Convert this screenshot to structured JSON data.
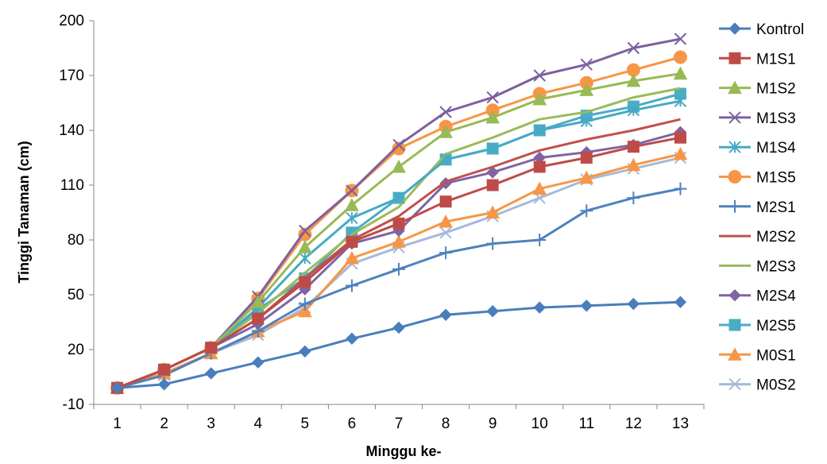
{
  "chart_data": {
    "type": "line",
    "xlabel": "Minggu ke-",
    "ylabel": "Tinggi Tanaman (cm)",
    "x": [
      1,
      2,
      3,
      4,
      5,
      6,
      7,
      8,
      9,
      10,
      11,
      12,
      13
    ],
    "ylim": [
      -10,
      200
    ],
    "yticks": [
      -10,
      20,
      50,
      80,
      110,
      140,
      170,
      200
    ],
    "grid": false,
    "legend_position": "right",
    "series": [
      {
        "name": "Kontrol",
        "color": "#4A7EBB",
        "marker": "diamond",
        "values": [
          -1,
          1,
          7,
          13,
          19,
          26,
          32,
          39,
          41,
          43,
          44,
          45,
          46
        ]
      },
      {
        "name": "M1S1",
        "color": "#BE4B48",
        "marker": "square",
        "values": [
          -1,
          9,
          21,
          37,
          57,
          79,
          89,
          101,
          110,
          120,
          125,
          131,
          136
        ]
      },
      {
        "name": "M1S2",
        "color": "#98B954",
        "marker": "triangle",
        "values": [
          -1,
          9,
          21,
          46,
          76,
          99,
          120,
          139,
          147,
          157,
          162,
          167,
          171
        ]
      },
      {
        "name": "M1S3",
        "color": "#7D60A0",
        "marker": "x",
        "values": [
          -1,
          9,
          21,
          49,
          85,
          107,
          132,
          150,
          158,
          170,
          176,
          185,
          190
        ]
      },
      {
        "name": "M1S4",
        "color": "#46AAC5",
        "marker": "asterisk",
        "values": [
          -1,
          9,
          21,
          43,
          70,
          92,
          103,
          124,
          130,
          140,
          145,
          151,
          156
        ]
      },
      {
        "name": "M1S5",
        "color": "#F79646",
        "marker": "circle",
        "values": [
          -1,
          9,
          21,
          48,
          83,
          107,
          130,
          142,
          151,
          160,
          166,
          173,
          180
        ]
      },
      {
        "name": "M2S1",
        "color": "#4F81BD",
        "marker": "plus",
        "values": [
          -1,
          6,
          18,
          30,
          45,
          55,
          64,
          73,
          78,
          80,
          96,
          103,
          108
        ]
      },
      {
        "name": "M2S2",
        "color": "#C0504D",
        "marker": "none",
        "values": [
          -1,
          9,
          21,
          37,
          59,
          80,
          93,
          112,
          120,
          129,
          135,
          140,
          146
        ]
      },
      {
        "name": "M2S3",
        "color": "#9BBB59",
        "marker": "none",
        "values": [
          -1,
          9,
          21,
          40,
          62,
          83,
          98,
          127,
          136,
          146,
          150,
          158,
          163
        ]
      },
      {
        "name": "M2S4",
        "color": "#8064A2",
        "marker": "diamond",
        "values": [
          -1,
          9,
          21,
          34,
          53,
          78,
          85,
          111,
          117,
          125,
          128,
          132,
          139
        ]
      },
      {
        "name": "M2S5",
        "color": "#4BACC6",
        "marker": "square",
        "values": [
          -1,
          9,
          21,
          42,
          59,
          84,
          103,
          124,
          130,
          140,
          148,
          153,
          160
        ]
      },
      {
        "name": "M0S1",
        "color": "#F79646",
        "marker": "triangle",
        "values": [
          -1,
          7,
          18,
          30,
          41,
          70,
          79,
          90,
          95,
          108,
          114,
          121,
          127
        ]
      },
      {
        "name": "M0S2",
        "color": "#A6B9D9",
        "marker": "x",
        "values": [
          -1,
          6,
          18,
          28,
          43,
          67,
          76,
          84,
          93,
          103,
          113,
          119,
          125
        ]
      }
    ]
  }
}
